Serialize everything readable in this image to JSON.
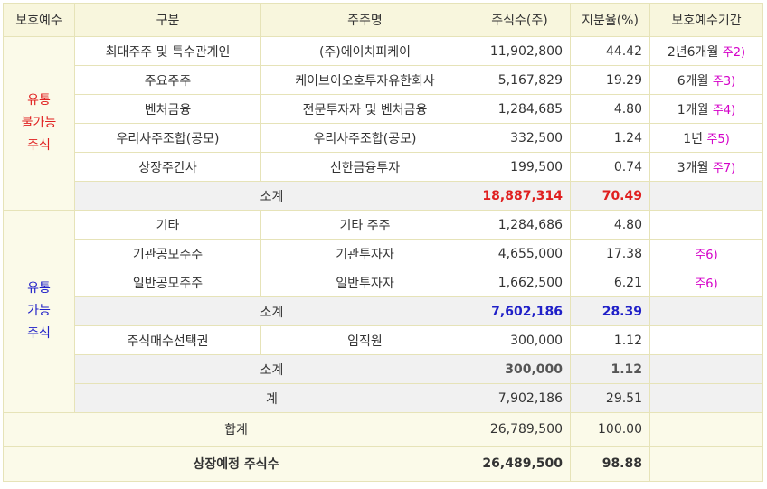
{
  "header": {
    "col1": "보호예수",
    "col2": "구분",
    "col3": "주주명",
    "col4": "주식수(주)",
    "col5": "지분율(%)",
    "col6": "보호예수기간"
  },
  "locked": {
    "label_lines": [
      "유통",
      "불가능",
      "주식"
    ],
    "rows": [
      {
        "type": "최대주주 및 특수관계인",
        "holder": "(주)에이치피케이",
        "shares": "11,902,800",
        "ratio": "44.42",
        "period": "2년6개월",
        "note": "주2)"
      },
      {
        "type": "주요주주",
        "holder": "케이브이오호투자유한회사",
        "shares": "5,167,829",
        "ratio": "19.29",
        "period": "6개월",
        "note": "주3)"
      },
      {
        "type": "벤처금융",
        "holder": "전문투자자 및 벤처금융",
        "shares": "1,284,685",
        "ratio": "4.80",
        "period": "1개월",
        "note": "주4)"
      },
      {
        "type": "우리사주조합(공모)",
        "holder": "우리사주조합(공모)",
        "shares": "332,500",
        "ratio": "1.24",
        "period": "1년",
        "note": "주5)"
      },
      {
        "type": "상장주간사",
        "holder": "신한금융투자",
        "shares": "199,500",
        "ratio": "0.74",
        "period": "3개월",
        "note": "주7)"
      }
    ],
    "subtotal": {
      "label": "소계",
      "shares": "18,887,314",
      "ratio": "70.49"
    }
  },
  "tradable": {
    "label_lines": [
      "유통",
      "가능",
      "주식"
    ],
    "rows": [
      {
        "type": "기타",
        "holder": "기타 주주",
        "shares": "1,284,686",
        "ratio": "4.80",
        "note": ""
      },
      {
        "type": "기관공모주주",
        "holder": "기관투자자",
        "shares": "4,655,000",
        "ratio": "17.38",
        "note": "주6)"
      },
      {
        "type": "일반공모주주",
        "holder": "일반투자자",
        "shares": "1,662,500",
        "ratio": "6.21",
        "note": "주6)"
      }
    ],
    "subtotal": {
      "label": "소계",
      "shares": "7,602,186",
      "ratio": "28.39"
    },
    "option_row": {
      "type": "주식매수선택권",
      "holder": "임직원",
      "shares": "300,000",
      "ratio": "1.12"
    },
    "option_subtotal": {
      "label": "소계",
      "shares": "300,000",
      "ratio": "1.12"
    },
    "total_row": {
      "label": "계",
      "shares": "7,902,186",
      "ratio": "29.51"
    }
  },
  "sum": {
    "label": "합계",
    "shares": "26,789,500",
    "ratio": "100.00"
  },
  "listing": {
    "label": "상장예정 주식수",
    "shares": "26,489,500",
    "ratio": "98.88"
  },
  "colors": {
    "red": "#e02020",
    "blue": "#2020c8",
    "note": "#d400c8",
    "header_bg": "#f8f6dd"
  }
}
